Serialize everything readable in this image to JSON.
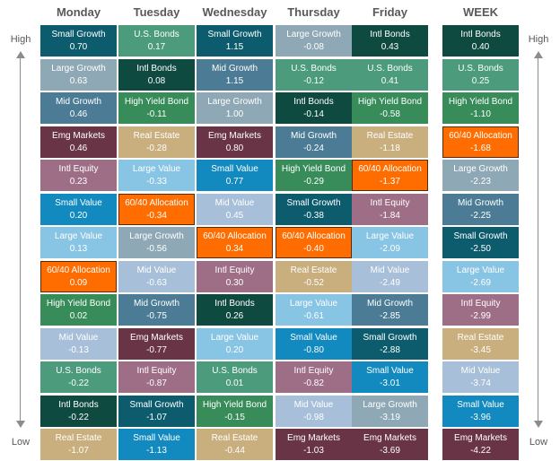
{
  "columns": [
    "Monday",
    "Tuesday",
    "Wednesday",
    "Thursday",
    "Friday",
    "WEEK"
  ],
  "axis": {
    "high": "High",
    "low": "Low"
  },
  "colors": {
    "Small Growth": "#0d5c6e",
    "U.S. Bonds": "#4b9b7c",
    "Large Growth": "#8ea9b5",
    "Intl Bonds": "#0f4a41",
    "Mid Growth": "#4c7c95",
    "High Yield Bond": "#388c5a",
    "Emg Markets": "#693445",
    "Real Estate": "#c9ae7e",
    "Intl Equity": "#9e6e87",
    "Large Value": "#88c4e3",
    "Small Value": "#1289bf",
    "60/40 Allocation": "#ff6d00",
    "Mid Value": "#a7bfd9"
  },
  "chart_data": {
    "type": "table",
    "columns": [
      {
        "name": "Monday",
        "items": [
          {
            "label": "Small Growth",
            "value": "0.70"
          },
          {
            "label": "Large Growth",
            "value": "0.63"
          },
          {
            "label": "Mid Growth",
            "value": "0.46"
          },
          {
            "label": "Emg Markets",
            "value": "0.46"
          },
          {
            "label": "Intl Equity",
            "value": "0.23"
          },
          {
            "label": "Small Value",
            "value": "0.20"
          },
          {
            "label": "Large Value",
            "value": "0.13"
          },
          {
            "label": "60/40 Allocation",
            "value": "0.09"
          },
          {
            "label": "High Yield Bond",
            "value": "0.02"
          },
          {
            "label": "Mid Value",
            "value": "-0.13"
          },
          {
            "label": "U.S. Bonds",
            "value": "-0.22"
          },
          {
            "label": "Intl Bonds",
            "value": "-0.22"
          },
          {
            "label": "Real Estate",
            "value": "-1.07"
          }
        ]
      },
      {
        "name": "Tuesday",
        "items": [
          {
            "label": "U.S. Bonds",
            "value": "0.17"
          },
          {
            "label": "Intl Bonds",
            "value": "0.08"
          },
          {
            "label": "High Yield Bond",
            "value": "-0.11"
          },
          {
            "label": "Real Estate",
            "value": "-0.28"
          },
          {
            "label": "Large Value",
            "value": "-0.33"
          },
          {
            "label": "60/40 Allocation",
            "value": "-0.34"
          },
          {
            "label": "Large Growth",
            "value": "-0.56"
          },
          {
            "label": "Mid Value",
            "value": "-0.63"
          },
          {
            "label": "Mid Growth",
            "value": "-0.75"
          },
          {
            "label": "Emg Markets",
            "value": "-0.77"
          },
          {
            "label": "Intl Equity",
            "value": "-0.87"
          },
          {
            "label": "Small Growth",
            "value": "-1.07"
          },
          {
            "label": "Small Value",
            "value": "-1.13"
          }
        ]
      },
      {
        "name": "Wednesday",
        "items": [
          {
            "label": "Small Growth",
            "value": "1.15"
          },
          {
            "label": "Mid Growth",
            "value": "1.15"
          },
          {
            "label": "Large Growth",
            "value": "1.00"
          },
          {
            "label": "Emg Markets",
            "value": "0.80"
          },
          {
            "label": "Small Value",
            "value": "0.77"
          },
          {
            "label": "Mid Value",
            "value": "0.45"
          },
          {
            "label": "60/40 Allocation",
            "value": "0.34"
          },
          {
            "label": "Intl Equity",
            "value": "0.30"
          },
          {
            "label": "Intl Bonds",
            "value": "0.26"
          },
          {
            "label": "Large Value",
            "value": "0.20"
          },
          {
            "label": "U.S. Bonds",
            "value": "0.01"
          },
          {
            "label": "High Yield Bond",
            "value": "-0.15"
          },
          {
            "label": "Real Estate",
            "value": "-0.44"
          }
        ]
      },
      {
        "name": "Thursday",
        "items": [
          {
            "label": "Large Growth",
            "value": "-0.08"
          },
          {
            "label": "U.S. Bonds",
            "value": "-0.12"
          },
          {
            "label": "Intl Bonds",
            "value": "-0.14"
          },
          {
            "label": "Mid Growth",
            "value": "-0.24"
          },
          {
            "label": "High Yield Bond",
            "value": "-0.29"
          },
          {
            "label": "Small Growth",
            "value": "-0.38"
          },
          {
            "label": "60/40 Allocation",
            "value": "-0.40"
          },
          {
            "label": "Real Estate",
            "value": "-0.52"
          },
          {
            "label": "Large Value",
            "value": "-0.61"
          },
          {
            "label": "Small Value",
            "value": "-0.80"
          },
          {
            "label": "Intl Equity",
            "value": "-0.82"
          },
          {
            "label": "Mid Value",
            "value": "-0.98"
          },
          {
            "label": "Emg Markets",
            "value": "-1.03"
          }
        ]
      },
      {
        "name": "Friday",
        "items": [
          {
            "label": "Intl Bonds",
            "value": "0.43"
          },
          {
            "label": "U.S. Bonds",
            "value": "0.41"
          },
          {
            "label": "High Yield Bond",
            "value": "-0.58"
          },
          {
            "label": "Real Estate",
            "value": "-1.18"
          },
          {
            "label": "60/40 Allocation",
            "value": "-1.37"
          },
          {
            "label": "Intl Equity",
            "value": "-1.84"
          },
          {
            "label": "Large Value",
            "value": "-2.09"
          },
          {
            "label": "Mid Value",
            "value": "-2.49"
          },
          {
            "label": "Mid Growth",
            "value": "-2.85"
          },
          {
            "label": "Small Growth",
            "value": "-2.88"
          },
          {
            "label": "Small Value",
            "value": "-3.01"
          },
          {
            "label": "Large Growth",
            "value": "-3.19"
          },
          {
            "label": "Emg Markets",
            "value": "-3.69"
          }
        ]
      },
      {
        "name": "WEEK",
        "items": [
          {
            "label": "Intl Bonds",
            "value": "0.40"
          },
          {
            "label": "U.S. Bonds",
            "value": "0.25"
          },
          {
            "label": "High Yield Bond",
            "value": "-1.10"
          },
          {
            "label": "60/40 Allocation",
            "value": "-1.68"
          },
          {
            "label": "Large Growth",
            "value": "-2.23"
          },
          {
            "label": "Mid Growth",
            "value": "-2.25"
          },
          {
            "label": "Small Growth",
            "value": "-2.50"
          },
          {
            "label": "Large Value",
            "value": "-2.69"
          },
          {
            "label": "Intl Equity",
            "value": "-2.99"
          },
          {
            "label": "Real Estate",
            "value": "-3.45"
          },
          {
            "label": "Mid Value",
            "value": "-3.74"
          },
          {
            "label": "Small Value",
            "value": "-3.96"
          },
          {
            "label": "Emg Markets",
            "value": "-4.22"
          }
        ]
      }
    ]
  }
}
